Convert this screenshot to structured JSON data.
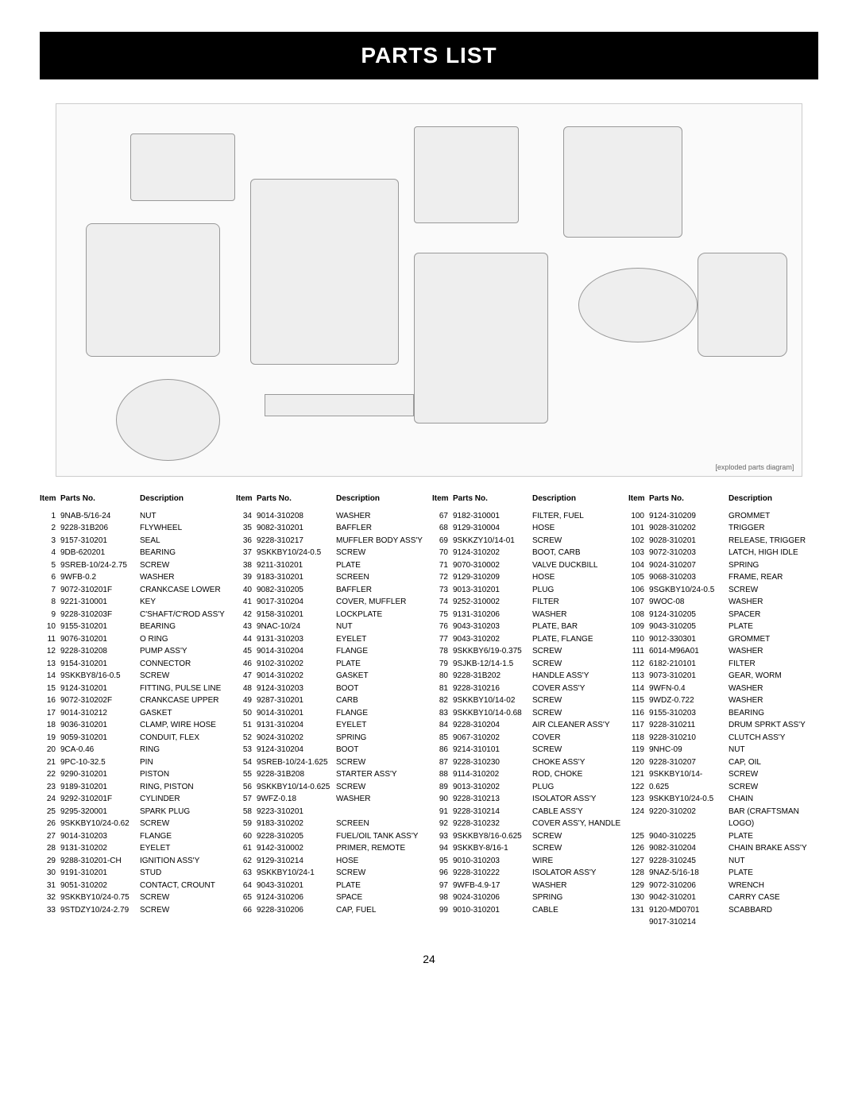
{
  "title": "PARTS LIST",
  "page_number": "24",
  "headers": {
    "item": "Item",
    "part": "Parts No.",
    "desc": "Description"
  },
  "diagram_note": "[exploded parts diagram]",
  "columns": [
    [
      {
        "item": "1",
        "part": "9NAB-5/16-24",
        "desc": "NUT"
      },
      {
        "item": "2",
        "part": "9228-31B206",
        "desc": "FLYWHEEL"
      },
      {
        "item": "3",
        "part": "9157-310201",
        "desc": "SEAL"
      },
      {
        "item": "4",
        "part": "9DB-620201",
        "desc": "BEARING"
      },
      {
        "item": "5",
        "part": "9SREB-10/24-2.75",
        "desc": "SCREW"
      },
      {
        "item": "6",
        "part": "9WFB-0.2",
        "desc": "WASHER"
      },
      {
        "item": "7",
        "part": "9072-310201F",
        "desc": "CRANKCASE LOWER"
      },
      {
        "item": "8",
        "part": "9221-310001",
        "desc": "KEY"
      },
      {
        "item": "9",
        "part": "9228-310203F",
        "desc": "C'SHAFT/C'ROD ASS'Y"
      },
      {
        "item": "10",
        "part": "9155-310201",
        "desc": "BEARING"
      },
      {
        "item": "11",
        "part": "9076-310201",
        "desc": "O RING"
      },
      {
        "item": "12",
        "part": "9228-310208",
        "desc": "PUMP ASS'Y"
      },
      {
        "item": "13",
        "part": "9154-310201",
        "desc": "CONNECTOR"
      },
      {
        "item": "14",
        "part": "9SKKBY8/16-0.5",
        "desc": "SCREW"
      },
      {
        "item": "15",
        "part": "9124-310201",
        "desc": "FITTING, PULSE LINE"
      },
      {
        "item": "16",
        "part": "9072-310202F",
        "desc": "CRANKCASE UPPER"
      },
      {
        "item": "17",
        "part": "9014-310212",
        "desc": "GASKET"
      },
      {
        "item": "18",
        "part": "9036-310201",
        "desc": "CLAMP, WIRE HOSE"
      },
      {
        "item": "19",
        "part": "9059-310201",
        "desc": "CONDUIT, FLEX"
      },
      {
        "item": "20",
        "part": "9CA-0.46",
        "desc": "RING"
      },
      {
        "item": "21",
        "part": "9PC-10-32.5",
        "desc": "PIN"
      },
      {
        "item": "22",
        "part": "9290-310201",
        "desc": "PISTON"
      },
      {
        "item": "23",
        "part": "9189-310201",
        "desc": "RING, PISTON"
      },
      {
        "item": "24",
        "part": "9292-310201F",
        "desc": "CYLINDER"
      },
      {
        "item": "25",
        "part": "9295-320001",
        "desc": "SPARK PLUG"
      },
      {
        "item": "26",
        "part": "9SKKBY10/24-0.62",
        "desc": "SCREW"
      },
      {
        "item": "27",
        "part": "9014-310203",
        "desc": "FLANGE"
      },
      {
        "item": "28",
        "part": "9131-310202",
        "desc": "EYELET"
      },
      {
        "item": "29",
        "part": "9288-310201-CH",
        "desc": "IGNITION ASS'Y"
      },
      {
        "item": "30",
        "part": "9191-310201",
        "desc": "STUD"
      },
      {
        "item": "31",
        "part": "9051-310202",
        "desc": "CONTACT, CROUNT"
      },
      {
        "item": "32",
        "part": "9SKKBY10/24-0.75",
        "desc": "SCREW"
      },
      {
        "item": "33",
        "part": "9STDZY10/24-2.79",
        "desc": "SCREW"
      }
    ],
    [
      {
        "item": "34",
        "part": "9014-310208",
        "desc": "WASHER"
      },
      {
        "item": "35",
        "part": "9082-310201",
        "desc": "BAFFLER"
      },
      {
        "item": "36",
        "part": "9228-310217",
        "desc": "MUFFLER BODY ASS'Y"
      },
      {
        "item": "37",
        "part": "9SKKBY10/24-0.5",
        "desc": "SCREW"
      },
      {
        "item": "38",
        "part": "9211-310201",
        "desc": "PLATE"
      },
      {
        "item": "39",
        "part": "9183-310201",
        "desc": "SCREEN"
      },
      {
        "item": "40",
        "part": "9082-310205",
        "desc": "BAFFLER"
      },
      {
        "item": "41",
        "part": "9017-310204",
        "desc": "COVER, MUFFLER"
      },
      {
        "item": "42",
        "part": "9158-310201",
        "desc": "LOCKPLATE"
      },
      {
        "item": "43",
        "part": "9NAC-10/24",
        "desc": "NUT"
      },
      {
        "item": "44",
        "part": "9131-310203",
        "desc": "EYELET"
      },
      {
        "item": "45",
        "part": "9014-310204",
        "desc": "FLANGE"
      },
      {
        "item": "46",
        "part": "9102-310202",
        "desc": "PLATE"
      },
      {
        "item": "47",
        "part": "9014-310202",
        "desc": "GASKET"
      },
      {
        "item": "48",
        "part": "9124-310203",
        "desc": "BOOT"
      },
      {
        "item": "49",
        "part": "9287-310201",
        "desc": "CARB"
      },
      {
        "item": "50",
        "part": "9014-310201",
        "desc": "FLANGE"
      },
      {
        "item": "51",
        "part": "9131-310204",
        "desc": "EYELET"
      },
      {
        "item": "52",
        "part": "9024-310202",
        "desc": "SPRING"
      },
      {
        "item": "53",
        "part": "9124-310204",
        "desc": "BOOT"
      },
      {
        "item": "54",
        "part": "9SREB-10/24-1.625",
        "desc": "SCREW"
      },
      {
        "item": "55",
        "part": "9228-31B208",
        "desc": "STARTER ASS'Y"
      },
      {
        "item": "56",
        "part": "9SKKBY10/14-0.625",
        "desc": "SCREW"
      },
      {
        "item": "57",
        "part": "9WFZ-0.18",
        "desc": "WASHER"
      },
      {
        "item": "58",
        "part": "9223-310201",
        "desc": ""
      },
      {
        "item": "59",
        "part": "9183-310202",
        "desc": "SCREEN"
      },
      {
        "item": "60",
        "part": "9228-310205",
        "desc": "FUEL/OIL TANK ASS'Y"
      },
      {
        "item": "61",
        "part": "9142-310002",
        "desc": "PRIMER, REMOTE"
      },
      {
        "item": "62",
        "part": "9129-310214",
        "desc": "HOSE"
      },
      {
        "item": "63",
        "part": "9SKKBY10/24-1",
        "desc": "SCREW"
      },
      {
        "item": "64",
        "part": "9043-310201",
        "desc": "PLATE"
      },
      {
        "item": "65",
        "part": "9124-310206",
        "desc": "SPACE"
      },
      {
        "item": "66",
        "part": "9228-310206",
        "desc": "CAP, FUEL"
      }
    ],
    [
      {
        "item": "67",
        "part": "9182-310001",
        "desc": "FILTER, FUEL"
      },
      {
        "item": "68",
        "part": "9129-310004",
        "desc": "HOSE"
      },
      {
        "item": "69",
        "part": "9SKKZY10/14-01",
        "desc": "SCREW"
      },
      {
        "item": "70",
        "part": "9124-310202",
        "desc": "BOOT, CARB"
      },
      {
        "item": "71",
        "part": "9070-310002",
        "desc": "VALVE DUCKBILL"
      },
      {
        "item": "72",
        "part": "9129-310209",
        "desc": "HOSE"
      },
      {
        "item": "73",
        "part": "9013-310201",
        "desc": "PLUG"
      },
      {
        "item": "74",
        "part": "9252-310002",
        "desc": "FILTER"
      },
      {
        "item": "75",
        "part": "9131-310206",
        "desc": "WASHER"
      },
      {
        "item": "76",
        "part": "9043-310203",
        "desc": "PLATE, BAR"
      },
      {
        "item": "77",
        "part": "9043-310202",
        "desc": "PLATE, FLANGE"
      },
      {
        "item": "78",
        "part": "9SKKBY6/19-0.375",
        "desc": "SCREW"
      },
      {
        "item": "79",
        "part": "9SJKB-12/14-1.5",
        "desc": "SCREW"
      },
      {
        "item": "80",
        "part": "9228-31B202",
        "desc": "HANDLE ASS'Y"
      },
      {
        "item": "81",
        "part": "9228-310216",
        "desc": "COVER ASS'Y"
      },
      {
        "item": "82",
        "part": "9SKKBY10/14-02",
        "desc": "SCREW"
      },
      {
        "item": "83",
        "part": "9SKKBY10/14-0.68",
        "desc": "SCREW"
      },
      {
        "item": "84",
        "part": "9228-310204",
        "desc": "AIR CLEANER ASS'Y"
      },
      {
        "item": "85",
        "part": "9067-310202",
        "desc": "COVER"
      },
      {
        "item": "86",
        "part": "9214-310101",
        "desc": "SCREW"
      },
      {
        "item": "87",
        "part": "9228-310230",
        "desc": "CHOKE ASS'Y"
      },
      {
        "item": "88",
        "part": "9114-310202",
        "desc": "ROD, CHOKE"
      },
      {
        "item": "89",
        "part": "9013-310202",
        "desc": "PLUG"
      },
      {
        "item": "90",
        "part": "9228-310213",
        "desc": "ISOLATOR ASS'Y"
      },
      {
        "item": "91",
        "part": "9228-310214",
        "desc": "CABLE ASS'Y"
      },
      {
        "item": "92",
        "part": "9228-310232",
        "desc": "COVER ASS'Y, HANDLE"
      },
      {
        "item": "93",
        "part": "9SKKBY8/16-0.625",
        "desc": "SCREW"
      },
      {
        "item": "94",
        "part": "9SKKBY-8/16-1",
        "desc": "SCREW"
      },
      {
        "item": "95",
        "part": "9010-310203",
        "desc": "WIRE"
      },
      {
        "item": "96",
        "part": "9228-310222",
        "desc": "ISOLATOR ASS'Y"
      },
      {
        "item": "97",
        "part": "9WFB-4.9-17",
        "desc": "WASHER"
      },
      {
        "item": "98",
        "part": "9024-310206",
        "desc": "SPRING"
      },
      {
        "item": "99",
        "part": "9010-310201",
        "desc": "CABLE"
      }
    ],
    [
      {
        "item": "100",
        "part": "9124-310209",
        "desc": "GROMMET"
      },
      {
        "item": "101",
        "part": "9028-310202",
        "desc": "TRIGGER"
      },
      {
        "item": "102",
        "part": "9028-310201",
        "desc": "RELEASE, TRIGGER"
      },
      {
        "item": "103",
        "part": "9072-310203",
        "desc": "LATCH, HIGH IDLE"
      },
      {
        "item": "104",
        "part": "9024-310207",
        "desc": "SPRING"
      },
      {
        "item": "105",
        "part": "9068-310203",
        "desc": "FRAME, REAR"
      },
      {
        "item": "106",
        "part": "9SGKBY10/24-0.5",
        "desc": "SCREW"
      },
      {
        "item": "107",
        "part": "9WOC-08",
        "desc": "WASHER"
      },
      {
        "item": "108",
        "part": "9124-310205",
        "desc": "SPACER"
      },
      {
        "item": "109",
        "part": "9043-310205",
        "desc": "PLATE"
      },
      {
        "item": "110",
        "part": "9012-330301",
        "desc": "GROMMET"
      },
      {
        "item": "111",
        "part": "6014-M96A01",
        "desc": "WASHER"
      },
      {
        "item": "112",
        "part": "6182-210101",
        "desc": "FILTER"
      },
      {
        "item": "113",
        "part": "9073-310201",
        "desc": "GEAR, WORM"
      },
      {
        "item": "114",
        "part": "9WFN-0.4",
        "desc": "WASHER"
      },
      {
        "item": "115",
        "part": "9WDZ-0.722",
        "desc": "WASHER"
      },
      {
        "item": "116",
        "part": "9155-310203",
        "desc": "BEARING"
      },
      {
        "item": "117",
        "part": "9228-310211",
        "desc": "DRUM SPRKT ASS'Y"
      },
      {
        "item": "118",
        "part": "9228-310210",
        "desc": "CLUTCH ASS'Y"
      },
      {
        "item": "119",
        "part": "9NHC-09",
        "desc": "NUT"
      },
      {
        "item": "120",
        "part": "9228-310207",
        "desc": "CAP, OIL"
      },
      {
        "item": "121",
        "part": "9SKKBY10/14-",
        "desc": "SCREW"
      },
      {
        "item": "122",
        "part": "0.625",
        "desc": "SCREW"
      },
      {
        "item": "123",
        "part": "9SKKBY10/24-0.5",
        "desc": "CHAIN"
      },
      {
        "item": "124",
        "part": "9220-310202",
        "desc": "BAR (CRAFTSMAN  LOGO)"
      },
      {
        "item": "125",
        "part": "9040-310225",
        "desc": "PLATE"
      },
      {
        "item": "126",
        "part": "9082-310204",
        "desc": "CHAIN BRAKE ASS'Y"
      },
      {
        "item": "127",
        "part": "9228-310245",
        "desc": "NUT"
      },
      {
        "item": "128",
        "part": "9NAZ-5/16-18",
        "desc": "PLATE"
      },
      {
        "item": "129",
        "part": "9072-310206",
        "desc": "WRENCH"
      },
      {
        "item": "130",
        "part": "9042-310201",
        "desc": "CARRY CASE"
      },
      {
        "item": "131",
        "part": "9120-MD0701",
        "desc": "SCABBARD"
      },
      {
        "item": "",
        "part": "9017-310214",
        "desc": ""
      }
    ]
  ]
}
